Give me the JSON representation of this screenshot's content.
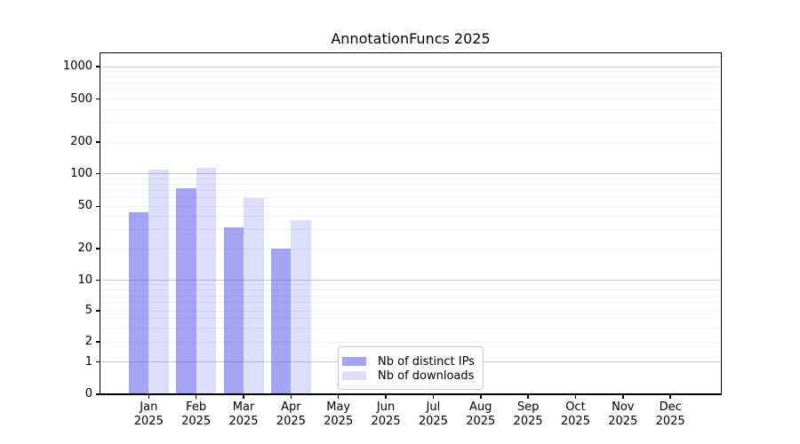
{
  "chart_data": {
    "type": "bar",
    "title": "AnnotationFuncs 2025",
    "months": [
      "Jan",
      "Feb",
      "Mar",
      "Apr",
      "May",
      "Jun",
      "Jul",
      "Aug",
      "Sep",
      "Oct",
      "Nov",
      "Dec"
    ],
    "x_axis": {
      "year_line": "2025"
    },
    "y_axis": {
      "scale": "symlog",
      "tick_values": [
        0,
        1,
        2,
        5,
        10,
        20,
        50,
        100,
        200,
        500,
        1000
      ],
      "tick_labels": [
        "0",
        "1",
        "2",
        "5",
        "10",
        "20",
        "50",
        "100",
        "200",
        "500",
        "1000"
      ],
      "range": [
        0,
        1400
      ]
    },
    "series": [
      {
        "name": "Nb of distinct IPs",
        "color": "rgba(90,90,235,0.55)",
        "values": [
          44,
          74,
          32,
          20,
          0,
          0,
          0,
          0,
          0,
          0,
          0,
          0
        ]
      },
      {
        "name": "Nb of downloads",
        "color": "rgba(90,90,235,0.20)",
        "values": [
          110,
          115,
          60,
          37,
          0,
          0,
          0,
          0,
          0,
          0,
          0,
          0
        ]
      }
    ],
    "legend": {
      "entries": [
        "Nb of distinct IPs",
        "Nb of downloads"
      ],
      "position": "lower center"
    },
    "grid": {
      "shown": true,
      "major_values": [
        1,
        10,
        100,
        1000
      ],
      "major_color": "#c9c9c9",
      "minor_color": "#f0f0f0"
    }
  }
}
